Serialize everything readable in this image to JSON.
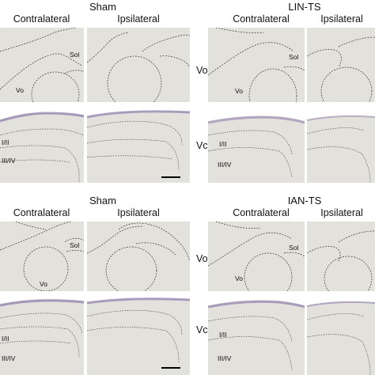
{
  "figure": {
    "top_left": {
      "title": "Sham",
      "col_left": "Contralateral",
      "col_right": "Ipsilateral"
    },
    "top_right": {
      "title": "LIN-TS",
      "col_left": "Contralateral",
      "col_right": "Ipsilateral",
      "row_top": "Vo",
      "row_bottom": "Vc"
    },
    "bottom_left": {
      "title": "Sham",
      "col_left": "Contralateral",
      "col_right": "Ipsilateral"
    },
    "bottom_right": {
      "title": "IAN-TS",
      "col_left": "Contralateral",
      "col_right": "Ipsilateral",
      "row_top": "Vo",
      "row_bottom": "Vc"
    }
  },
  "panel_labels": {
    "vo": "Vo",
    "sol": "Sol",
    "lamina_1_2": "I/II",
    "lamina_3_4": "III/IV"
  },
  "colors": {
    "tissue": "#e3e1dc",
    "tissue_dark": "#d8d5cf",
    "stain": "#8f7fae",
    "outline": "#333333"
  }
}
